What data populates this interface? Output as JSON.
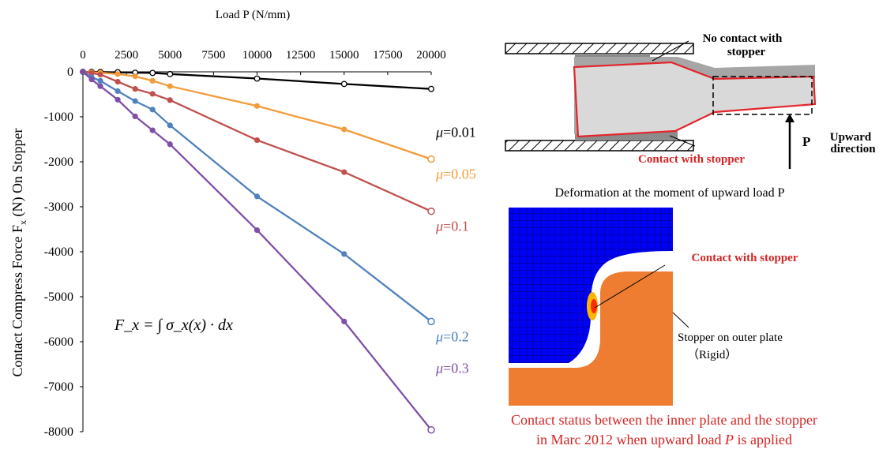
{
  "chart_data": {
    "type": "scatter",
    "xlabel": "Load P (N/mm)",
    "ylabel": "Contact Compress Force F",
    "ylabel_sub": "x",
    "ylabel_tail": " (N) On  Stopper",
    "xlim": [
      0,
      20000
    ],
    "ylim": [
      -8000,
      0
    ],
    "x_ticks": [
      "0",
      "2500",
      "5000",
      "7500",
      "10000",
      "12500",
      "15000",
      "17500",
      "20000"
    ],
    "y_ticks": [
      "0",
      "-1000",
      "-2000",
      "-3000",
      "-4000",
      "-5000",
      "-6000",
      "-7000",
      "-8000"
    ],
    "formula": "F_x = ∫ σ_x(x) · dx",
    "series": [
      {
        "name": "μ=0.01",
        "mu": "0.01",
        "color": "#000000",
        "x": [
          0,
          500,
          1000,
          2000,
          3000,
          4000,
          5000,
          10000,
          15000,
          20000
        ],
        "y": [
          0,
          -2,
          -5,
          -10,
          -20,
          -25,
          -50,
          -150,
          -270,
          -380
        ]
      },
      {
        "name": "μ=0.05",
        "mu": "0.05",
        "color": "#f39b3b",
        "x": [
          0,
          500,
          1000,
          2000,
          3000,
          4000,
          5000,
          10000,
          15000,
          20000
        ],
        "y": [
          0,
          -10,
          -20,
          -50,
          -100,
          -200,
          -320,
          -760,
          -1280,
          -1940
        ]
      },
      {
        "name": "μ=0.1",
        "mu": "0.1",
        "color": "#c0504d",
        "x": [
          0,
          500,
          1000,
          2000,
          3000,
          4000,
          5000,
          10000,
          15000,
          20000
        ],
        "y": [
          0,
          -30,
          -60,
          -220,
          -380,
          -490,
          -630,
          -1520,
          -2230,
          -3100
        ]
      },
      {
        "name": "μ=0.2",
        "mu": "0.2",
        "color": "#4f81bd",
        "x": [
          0,
          500,
          1000,
          2000,
          3000,
          4000,
          5000,
          10000,
          15000,
          20000
        ],
        "y": [
          0,
          -120,
          -200,
          -430,
          -650,
          -840,
          -1190,
          -2770,
          -4050,
          -5550
        ]
      },
      {
        "name": "μ=0.3",
        "mu": "0.3",
        "color": "#7f4fa8",
        "x": [
          0,
          500,
          1000,
          2000,
          3000,
          4000,
          5000,
          10000,
          15000,
          20000
        ],
        "y": [
          0,
          -170,
          -320,
          -620,
          -990,
          -1300,
          -1610,
          -3520,
          -5550,
          -7960
        ]
      }
    ]
  },
  "diagram": {
    "no_contact_label_1": "No contact with",
    "no_contact_label_2": "stopper",
    "contact_label": "Contact with stopper",
    "p_label": "P",
    "upward_1": "Upward",
    "upward_2": "direction",
    "caption": "Deformation at the moment of  upward load P"
  },
  "fem": {
    "contact_label": "Contact with stopper",
    "stopper_label": "Stopper on  outer plate",
    "rigid_label": "（Rigid）",
    "bottom_caption_1": "Contact status between  the inner plate and the stopper",
    "bottom_caption_2_pre": "in Marc 2012 when upward load ",
    "bottom_caption_2_var": "P",
    "bottom_caption_2_post": "  is applied"
  },
  "colors": {
    "accent_red": "#d42424",
    "mesh_blue": "#0000f2",
    "stopper_orange": "#ee7d31"
  }
}
